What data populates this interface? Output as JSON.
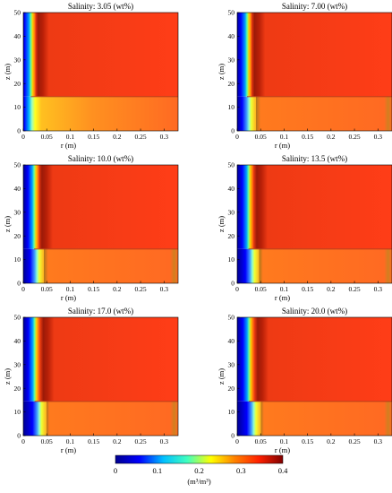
{
  "chart_data": {
    "type": "heatmap",
    "panels": [
      {
        "title": "Salinity: 3.05 (wt%)",
        "salinity_wt_pct": 3.05
      },
      {
        "title": "Salinity: 7.00 (wt%)",
        "salinity_wt_pct": 7.0
      },
      {
        "title": "Salinity: 10.0 (wt%)",
        "salinity_wt_pct": 10.0
      },
      {
        "title": "Salinity: 13.5 (wt%)",
        "salinity_wt_pct": 13.5
      },
      {
        "title": "Salinity: 17.0 (wt%)",
        "salinity_wt_pct": 17.0
      },
      {
        "title": "Salinity: 20.0 (wt%)",
        "salinity_wt_pct": 20.0
      }
    ],
    "xlabel": "r (m)",
    "ylabel": "z (m)",
    "xlim": [
      0,
      0.33
    ],
    "ylim": [
      0,
      50
    ],
    "xticks": [
      "0",
      "0.05",
      "0.1",
      "0.15",
      "0.2",
      "0.25",
      "0.3"
    ],
    "yticks": [
      "0",
      "10",
      "20",
      "30",
      "40",
      "50"
    ],
    "interface_depth_z": 14.5,
    "front_radius_upper": [
      0.016,
      0.021,
      0.023,
      0.024,
      0.024,
      0.025
    ],
    "front_radius_lower": [
      0.022,
      0.027,
      0.031,
      0.034,
      0.036,
      0.037
    ],
    "dark_band_radius": [
      0.035,
      0.04,
      0.043,
      0.045,
      0.046,
      0.047
    ],
    "far_field_value": 0.35,
    "colorbar": {
      "min": 0,
      "max": 0.4,
      "ticks": [
        "0",
        "0.1",
        "0.2",
        "0.3",
        "0.4"
      ],
      "label": "(m³/m³)",
      "colors": [
        "#00008f",
        "#0000ff",
        "#00bfff",
        "#40ffbf",
        "#ffff00",
        "#ff8000",
        "#ff2000",
        "#800000"
      ]
    },
    "legend": "none",
    "grid": false
  }
}
